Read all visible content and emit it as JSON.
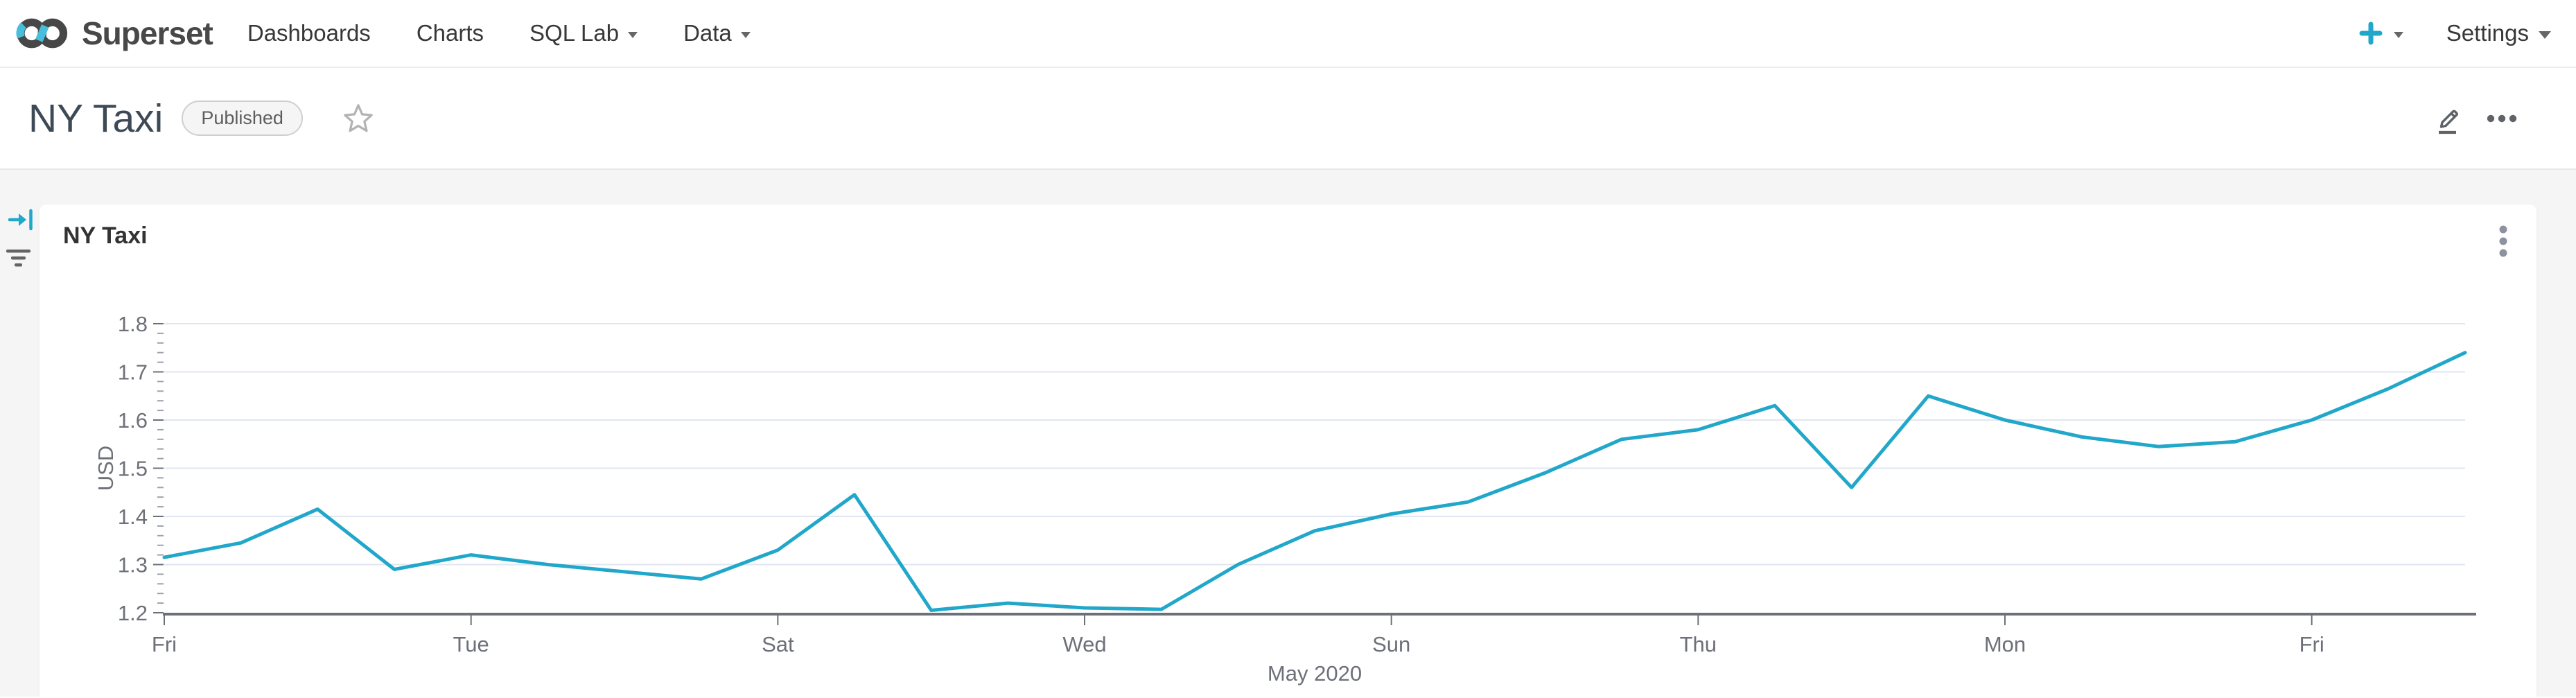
{
  "navbar": {
    "brand": "Superset",
    "items": [
      {
        "label": "Dashboards",
        "dropdown": false
      },
      {
        "label": "Charts",
        "dropdown": false
      },
      {
        "label": "SQL Lab",
        "dropdown": true
      },
      {
        "label": "Data",
        "dropdown": true
      }
    ],
    "settings_label": "Settings"
  },
  "dashboard_header": {
    "title": "NY Taxi",
    "status_badge": "Published"
  },
  "chart_card": {
    "title": "NY Taxi"
  },
  "colors": {
    "primary": "#20A7C9",
    "line": "#20A7C9",
    "gridline": "#E0E6F1",
    "axis_text": "#6E7079",
    "axis_line": "#6E7079",
    "minor_tick": "#9CA2AB",
    "page_background": "#F5F5F5"
  },
  "chart_data": {
    "type": "line",
    "title": "NY Taxi",
    "xlabel": "May 2020",
    "ylabel": "USD",
    "ylim": [
      1.2,
      1.8
    ],
    "y_tick_labels": [
      "1.2",
      "1.3",
      "1.4",
      "1.5",
      "1.6",
      "1.7",
      "1.8"
    ],
    "y_minor_tick_step": 0.02,
    "x_tick_labels": [
      "Fri",
      "Tue",
      "Sat",
      "Wed",
      "Sun",
      "Thu",
      "Mon",
      "Fri"
    ],
    "x_tick_indices": [
      0,
      4,
      8,
      12,
      16,
      20,
      24,
      28
    ],
    "num_points": 31,
    "grid": true,
    "legend": false,
    "series": [
      {
        "name": "NY Taxi",
        "color": "#20A7C9",
        "values": [
          1.315,
          1.345,
          1.415,
          1.29,
          1.32,
          1.3,
          1.285,
          1.27,
          1.33,
          1.445,
          1.205,
          1.22,
          1.21,
          1.207,
          1.3,
          1.37,
          1.405,
          1.43,
          1.49,
          1.56,
          1.58,
          1.63,
          1.46,
          1.65,
          1.6,
          1.565,
          1.545,
          1.555,
          1.6,
          1.665,
          1.74
        ]
      }
    ]
  }
}
